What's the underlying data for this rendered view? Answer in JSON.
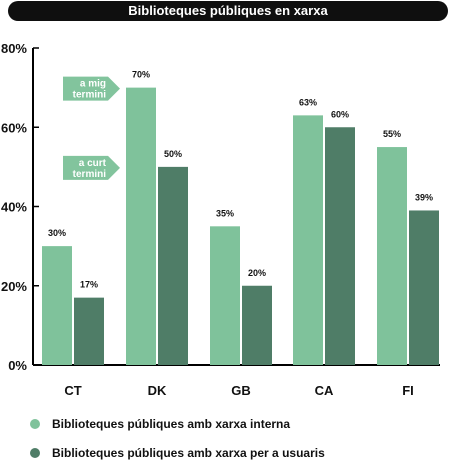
{
  "title": "Biblioteques públiques en xarxa",
  "colors": {
    "internal": "#7fc29b",
    "users": "#4f7d67",
    "arrow": "#82c49d",
    "arrow_text": "#ffffff"
  },
  "annotations": [
    {
      "text_line1": "a mig",
      "text_line2": "termini",
      "y_value": 70
    },
    {
      "text_line1": "a curt",
      "text_line2": "termini",
      "y_value": 50
    }
  ],
  "chart_data": {
    "type": "bar",
    "title": "Biblioteques públiques en xarxa",
    "categories": [
      "CT",
      "DK",
      "GB",
      "CA",
      "FI"
    ],
    "series": [
      {
        "name": "Biblioteques públiques amb xarxa interna",
        "values": [
          30,
          70,
          35,
          63,
          55
        ],
        "color": "#7fc29b"
      },
      {
        "name": "Biblioteques públiques amb xarxa per a usuaris",
        "values": [
          17,
          50,
          20,
          60,
          39
        ],
        "color": "#4f7d67"
      }
    ],
    "value_labels": [
      [
        "30%",
        "70%",
        "35%",
        "63%",
        "55%"
      ],
      [
        "17%",
        "50%",
        "20%",
        "60%",
        "39%"
      ]
    ],
    "ylim": [
      0,
      80
    ],
    "yticks": [
      0,
      20,
      40,
      60,
      80
    ],
    "ytick_labels": [
      "0%",
      "20%",
      "40%",
      "60%",
      "80%"
    ],
    "grid": false,
    "legend_position": "bottom"
  }
}
